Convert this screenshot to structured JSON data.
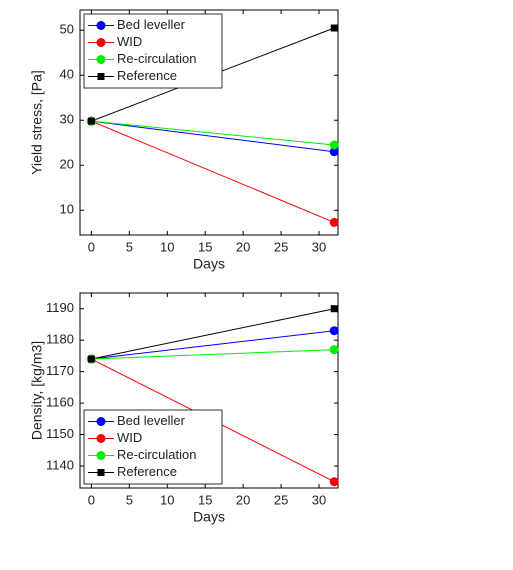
{
  "chart_data": [
    {
      "type": "line",
      "xlabel": "Days",
      "ylabel": "Yield stress, [Pa]",
      "x": [
        0,
        32
      ],
      "xlim": [
        -1.5,
        32.5
      ],
      "xticks": [
        0,
        5,
        10,
        15,
        20,
        25,
        30
      ],
      "ylim": [
        4.5,
        54.5
      ],
      "yticks": [
        10,
        20,
        30,
        40,
        50
      ],
      "legend": "upper-left",
      "series": [
        {
          "name": "Bed leveller",
          "color": "#0000ff",
          "marker": "circle",
          "values": [
            29.8,
            23
          ]
        },
        {
          "name": "WID",
          "color": "#ff0000",
          "marker": "circle",
          "values": [
            29.8,
            7.3
          ]
        },
        {
          "name": "Re-circulation",
          "color": "#00ee00",
          "marker": "circle",
          "values": [
            29.8,
            24.5
          ]
        },
        {
          "name": "Reference",
          "color": "#000000",
          "marker": "square",
          "values": [
            29.8,
            50.5
          ]
        }
      ]
    },
    {
      "type": "line",
      "xlabel": "Days",
      "ylabel": "Density, [kg/m3]",
      "x": [
        0,
        32
      ],
      "xlim": [
        -1.5,
        32.5
      ],
      "xticks": [
        0,
        5,
        10,
        15,
        20,
        25,
        30
      ],
      "ylim": [
        1133,
        1195
      ],
      "yticks": [
        1140,
        1150,
        1160,
        1170,
        1180,
        1190
      ],
      "legend": "lower-left",
      "series": [
        {
          "name": "Bed leveller",
          "color": "#0000ff",
          "marker": "circle",
          "values": [
            1174,
            1183
          ]
        },
        {
          "name": "WID",
          "color": "#ff0000",
          "marker": "circle",
          "values": [
            1174,
            1135
          ]
        },
        {
          "name": "Re-circulation",
          "color": "#00ee00",
          "marker": "circle",
          "values": [
            1174,
            1177
          ]
        },
        {
          "name": "Reference",
          "color": "#000000",
          "marker": "square",
          "values": [
            1174,
            1190
          ]
        }
      ]
    }
  ]
}
